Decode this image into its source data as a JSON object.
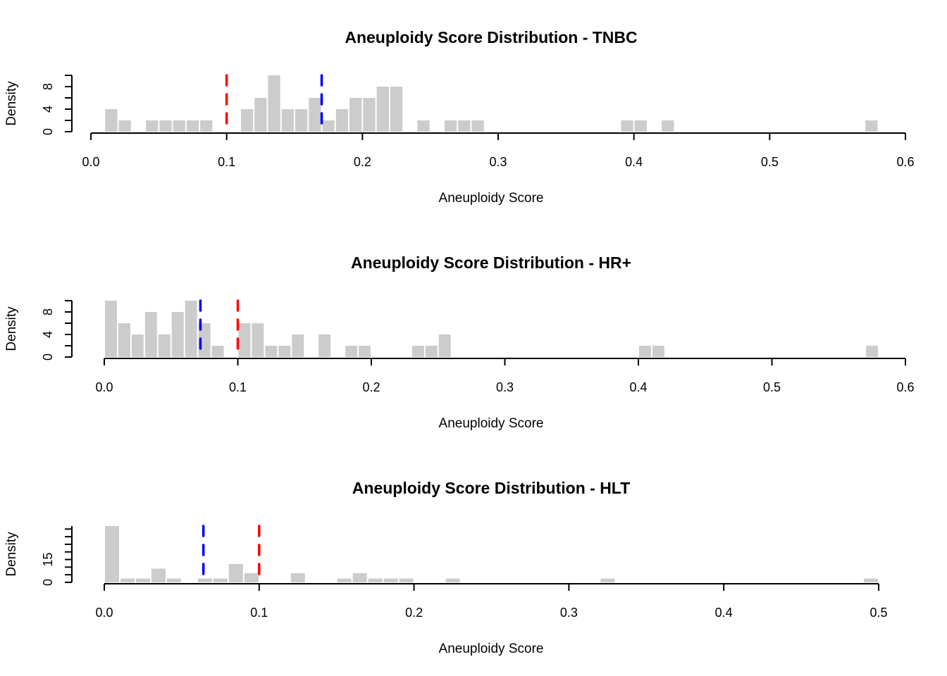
{
  "chart_data": [
    {
      "type": "bar",
      "title": "Aneuploidy Score Distribution - TNBC",
      "xlabel": "Aneuploidy Score",
      "ylabel": "Density",
      "xlim": [
        0,
        0.6
      ],
      "ylim": [
        0,
        10
      ],
      "xticks": [
        "0.0",
        "0.1",
        "0.2",
        "0.3",
        "0.4",
        "0.5",
        "0.6"
      ],
      "yticks": [
        "0",
        "4",
        "8"
      ],
      "bin_width": 0.01,
      "bins_x": [
        0.01,
        0.02,
        0.04,
        0.05,
        0.06,
        0.07,
        0.08,
        0.11,
        0.12,
        0.13,
        0.14,
        0.15,
        0.16,
        0.17,
        0.18,
        0.19,
        0.2,
        0.21,
        0.22,
        0.24,
        0.26,
        0.27,
        0.28,
        0.39,
        0.4,
        0.42,
        0.57
      ],
      "bins_density": [
        4,
        2,
        2,
        2,
        2,
        2,
        2,
        4,
        6,
        10,
        4,
        4,
        6,
        2,
        4,
        6,
        6,
        8,
        8,
        2,
        2,
        2,
        2,
        2,
        2,
        2,
        2
      ],
      "vlines": [
        {
          "x": 0.1,
          "color": "#ff0000"
        },
        {
          "x": 0.17,
          "color": "#0000ff"
        }
      ],
      "bar_color": "#cccccc"
    },
    {
      "type": "bar",
      "title": "Aneuploidy Score Distribution - HR+",
      "xlabel": "Aneuploidy Score",
      "ylabel": "Density",
      "xlim": [
        0,
        0.6
      ],
      "ylim": [
        0,
        10
      ],
      "xticks": [
        "0.0",
        "0.1",
        "0.2",
        "0.3",
        "0.4",
        "0.5",
        "0.6"
      ],
      "yticks": [
        "0",
        "4",
        "8"
      ],
      "bin_width": 0.01,
      "bins_x": [
        0,
        0.01,
        0.02,
        0.03,
        0.04,
        0.05,
        0.06,
        0.07,
        0.08,
        0.1,
        0.11,
        0.12,
        0.13,
        0.14,
        0.16,
        0.18,
        0.19,
        0.23,
        0.24,
        0.25,
        0.4,
        0.41,
        0.57
      ],
      "bins_density": [
        10,
        6,
        4,
        8,
        4,
        8,
        10,
        6,
        2,
        6,
        6,
        2,
        2,
        4,
        4,
        2,
        2,
        2,
        2,
        4,
        2,
        2,
        2
      ],
      "vlines": [
        {
          "x": 0.072,
          "color": "#0000ff"
        },
        {
          "x": 0.1,
          "color": "#ff0000"
        }
      ],
      "bar_color": "#cccccc"
    },
    {
      "type": "bar",
      "title": "Aneuploidy Score Distribution - HLT",
      "xlabel": "Aneuploidy Score",
      "ylabel": "Density",
      "xlim": [
        0,
        0.5
      ],
      "ylim": [
        0,
        37
      ],
      "xticks": [
        "0.0",
        "0.1",
        "0.2",
        "0.3",
        "0.4",
        "0.5"
      ],
      "yticks": [
        "0",
        "15"
      ],
      "ytick_values": [
        0,
        15
      ],
      "ytick_minor": [
        5,
        10,
        20,
        25,
        30,
        35
      ],
      "bin_width": 0.01,
      "bins_x": [
        0,
        0.01,
        0.02,
        0.03,
        0.04,
        0.06,
        0.07,
        0.08,
        0.09,
        0.12,
        0.15,
        0.16,
        0.17,
        0.18,
        0.19,
        0.22,
        0.32,
        0.49
      ],
      "bins_density": [
        37,
        2.5,
        2.5,
        9,
        2.5,
        2.5,
        2.5,
        12,
        6,
        6,
        2.5,
        6,
        2.5,
        2.5,
        2.5,
        2.5,
        2.5,
        2.5
      ],
      "vlines": [
        {
          "x": 0.064,
          "color": "#0000ff"
        },
        {
          "x": 0.1,
          "color": "#ff0000"
        }
      ],
      "bar_color": "#cccccc"
    }
  ]
}
